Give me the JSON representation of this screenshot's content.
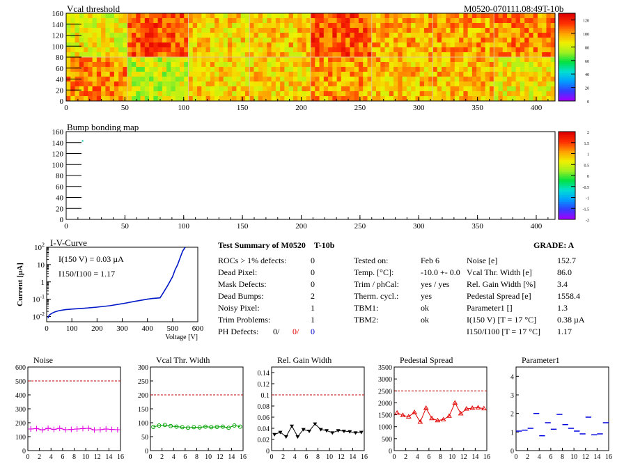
{
  "heatmap_title": "Vcal threshold",
  "module_id": "M0520-070111.08:49T-10b",
  "bump_title": "Bump bonding map",
  "colors": {
    "heat_low": "#c8f040",
    "heat_high": "#ff4020",
    "iv_line": "#0018c8",
    "noise_marker": "#e000e0",
    "vcal_marker": "#00a000",
    "gain_marker": "#000000",
    "pedestal_marker": "#e00000",
    "param_marker": "#0000e0",
    "limit_line": "#c00000"
  },
  "summary": {
    "title": "Test Summary of M0520",
    "temp_label": "T-10b",
    "grade": "GRADE:  A",
    "left": [
      {
        "label": "ROCs > 1% defects:",
        "value": "0"
      },
      {
        "label": "Dead Pixel:",
        "value": "0"
      },
      {
        "label": "Mask Defects:",
        "value": "0"
      },
      {
        "label": "Dead Bumps:",
        "value": "2"
      },
      {
        "label": "Noisy Pixel:",
        "value": "1"
      },
      {
        "label": "Trim Problems:",
        "value": "1"
      }
    ],
    "ph_label": "PH Defects:",
    "ph_values": [
      "0/",
      "0/",
      "0"
    ],
    "middle": [
      {
        "label": "Tested on:",
        "value": "Feb 6"
      },
      {
        "label": "Temp. [°C]:",
        "value": "-10.0 +- 0.0"
      },
      {
        "label": "Trim / phCal:",
        "value": "yes / yes"
      },
      {
        "label": "Therm. cycl.:",
        "value": "yes"
      },
      {
        "label": "TBM1:",
        "value": "ok"
      },
      {
        "label": "TBM2:",
        "value": "ok"
      }
    ],
    "right": [
      {
        "label": "Noise [e]",
        "value": "152.7"
      },
      {
        "label": "Vcal Thr. Width [e]",
        "value": "86.0"
      },
      {
        "label": "Rel. Gain Width [%]",
        "value": "3.4"
      },
      {
        "label": "Pedestal Spread [e]",
        "value": "1558.4"
      },
      {
        "label": "Parameter1 []",
        "value": "1.3"
      },
      {
        "label": "I(150 V)  [T = 17 °C]",
        "value": "0.38 µA"
      },
      {
        "label": "I150/I100  [T = 17 °C]",
        "value": "1.17"
      }
    ]
  },
  "chart_data": [
    {
      "type": "heatmap",
      "title": "Vcal threshold",
      "xlim": [
        0,
        416
      ],
      "ylim": [
        0,
        160
      ],
      "xticks": [
        "0",
        "50",
        "100",
        "150",
        "200",
        "250",
        "300",
        "350",
        "400"
      ],
      "yticks": [
        "0",
        "20",
        "40",
        "60",
        "80",
        "100",
        "120",
        "140",
        "160"
      ],
      "zlim": [
        0,
        130
      ],
      "zticks": [
        "0",
        "20",
        "40",
        "60",
        "80",
        "100",
        "120"
      ],
      "roc_values_top": [
        86,
        112,
        92,
        94,
        112,
        98,
        100,
        104
      ],
      "roc_values_bottom": [
        104,
        80,
        92,
        92,
        100,
        96,
        96,
        88
      ]
    },
    {
      "type": "heatmap",
      "title": "Bump bonding map",
      "xlim": [
        0,
        416
      ],
      "ylim": [
        0,
        160
      ],
      "xticks": [
        "0",
        "50",
        "100",
        "150",
        "200",
        "250",
        "300",
        "350",
        "400"
      ],
      "yticks": [
        "0",
        "20",
        "40",
        "60",
        "80",
        "100",
        "120",
        "140",
        "160"
      ],
      "zlim": [
        -2,
        2
      ],
      "zticks": [
        "-2",
        "-1.5",
        "-1",
        "-0.5",
        "0",
        "0.5",
        "1",
        "1.5",
        "2"
      ],
      "points": [
        {
          "x": 14,
          "y": 143
        }
      ]
    },
    {
      "type": "line",
      "title": "I-V-Curve",
      "xlabel": "Voltage [V]",
      "ylabel": "Current [µA]",
      "xlim": [
        0,
        600
      ],
      "ylim_log": [
        0.005,
        100
      ],
      "xticks": [
        "0",
        "100",
        "200",
        "300",
        "400",
        "500",
        "600"
      ],
      "yticks": [
        "10-2",
        "10-1",
        "1",
        "10",
        "102"
      ],
      "annotations": [
        "I(150 V) = 0.03 µA",
        "I150/I100 =  1.17"
      ],
      "x": [
        5,
        10,
        20,
        30,
        40,
        50,
        75,
        100,
        150,
        200,
        250,
        300,
        350,
        400,
        420,
        450,
        460,
        480,
        500,
        510,
        520,
        530,
        540,
        550
      ],
      "y": [
        0.008,
        0.012,
        0.015,
        0.018,
        0.02,
        0.022,
        0.025,
        0.027,
        0.03,
        0.035,
        0.042,
        0.055,
        0.075,
        0.1,
        0.11,
        0.12,
        0.2,
        0.6,
        2,
        5,
        10,
        25,
        60,
        100
      ]
    },
    {
      "type": "line",
      "title": "Noise",
      "marker": "cross",
      "x": [
        0,
        1,
        2,
        3,
        4,
        5,
        6,
        7,
        8,
        9,
        10,
        11,
        12,
        13,
        14,
        15
      ],
      "y": [
        155,
        158,
        148,
        160,
        152,
        160,
        150,
        152,
        155,
        158,
        160,
        148,
        150,
        155,
        152,
        150
      ],
      "xlim": [
        0,
        16
      ],
      "ylim": [
        0,
        600
      ],
      "limit": 500,
      "xticks": [
        "0",
        "2",
        "4",
        "6",
        "8",
        "10",
        "12",
        "14",
        "16"
      ],
      "yticks": [
        "0",
        "100",
        "200",
        "300",
        "400",
        "500",
        "600"
      ]
    },
    {
      "type": "line",
      "title": "Vcal Thr. Width",
      "marker": "circle",
      "x": [
        0,
        1,
        2,
        3,
        4,
        5,
        6,
        7,
        8,
        9,
        10,
        11,
        12,
        13,
        14,
        15
      ],
      "y": [
        85,
        90,
        92,
        88,
        86,
        84,
        82,
        84,
        83,
        86,
        84,
        85,
        86,
        82,
        90,
        86
      ],
      "xlim": [
        0,
        16
      ],
      "ylim": [
        0,
        300
      ],
      "limit": 200,
      "xticks": [
        "0",
        "2",
        "4",
        "6",
        "8",
        "10",
        "12",
        "14",
        "16"
      ],
      "yticks": [
        "0",
        "50",
        "100",
        "150",
        "200",
        "250",
        "300"
      ]
    },
    {
      "type": "line",
      "title": "Rel. Gain Width",
      "marker": "triangle-down",
      "x": [
        0,
        1,
        2,
        3,
        4,
        5,
        6,
        7,
        8,
        9,
        10,
        11,
        12,
        13,
        14,
        15
      ],
      "y": [
        0.029,
        0.033,
        0.025,
        0.044,
        0.025,
        0.038,
        0.035,
        0.048,
        0.038,
        0.036,
        0.032,
        0.036,
        0.035,
        0.034,
        0.032,
        0.033
      ],
      "xlim": [
        0,
        16
      ],
      "ylim": [
        0,
        0.15
      ],
      "limit": 0.1,
      "xticks": [
        "0",
        "2",
        "4",
        "6",
        "8",
        "10",
        "12",
        "14",
        "16"
      ],
      "yticks": [
        "0",
        "0.02",
        "0.04",
        "0.06",
        "0.08",
        "0.1",
        "0.12",
        "0.14"
      ]
    },
    {
      "type": "line",
      "title": "Pedestal Spread",
      "marker": "triangle-up",
      "x": [
        0,
        1,
        2,
        3,
        4,
        5,
        6,
        7,
        8,
        9,
        10,
        11,
        12,
        13,
        14,
        15
      ],
      "y": [
        1580,
        1480,
        1420,
        1600,
        1200,
        1780,
        1350,
        1260,
        1300,
        1450,
        2000,
        1550,
        1750,
        1780,
        1800,
        1760
      ],
      "xlim": [
        0,
        16
      ],
      "ylim": [
        0,
        3500
      ],
      "limit": 2500,
      "xticks": [
        "0",
        "2",
        "4",
        "6",
        "8",
        "10",
        "12",
        "14",
        "16"
      ],
      "yticks": [
        "0",
        "500",
        "1000",
        "1500",
        "2000",
        "2500",
        "3000",
        "3500"
      ]
    },
    {
      "type": "line",
      "title": "Parameter1",
      "marker": "dash",
      "x": [
        0,
        1,
        2,
        3,
        4,
        5,
        6,
        7,
        8,
        9,
        10,
        11,
        12,
        13,
        14,
        15
      ],
      "y": [
        1.05,
        1.1,
        1.2,
        2.0,
        0.8,
        1.5,
        1.15,
        1.95,
        1.4,
        1.2,
        1.05,
        0.9,
        1.8,
        0.85,
        0.9,
        1.5
      ],
      "xlim": [
        0,
        16
      ],
      "ylim": [
        0,
        4.5
      ],
      "xticks": [
        "0",
        "2",
        "4",
        "6",
        "8",
        "10",
        "12",
        "14",
        "16"
      ],
      "yticks": [
        "0",
        "1",
        "2",
        "3",
        "4"
      ]
    }
  ]
}
